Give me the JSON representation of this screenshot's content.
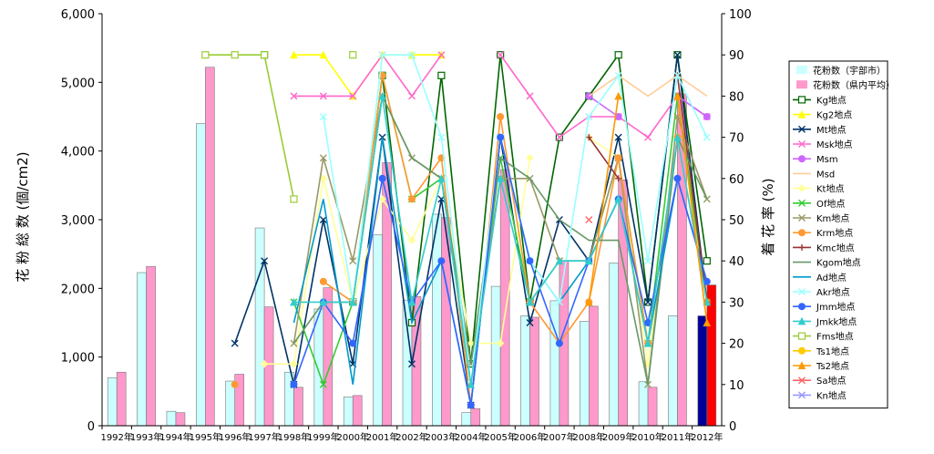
{
  "chart_data": {
    "type": "bar+line",
    "title": "",
    "ylabel_left": "花 粉 総 数 (個/cm2)",
    "ylabel_right": "着 花 率 (%)",
    "ylim_left": [
      0,
      6000
    ],
    "ylim_right": [
      0,
      100
    ],
    "yticks_left": [
      "0",
      "1,000",
      "2,000",
      "3,000",
      "4,000",
      "5,000",
      "6,000"
    ],
    "yticks_right": [
      "0",
      "10",
      "20",
      "30",
      "40",
      "50",
      "60",
      "70",
      "80",
      "90",
      "100"
    ],
    "categories": [
      "1992年",
      "1993年",
      "1994年",
      "1995年",
      "1996年",
      "1997年",
      "1998年",
      "1999年",
      "2000年",
      "2001年",
      "2002年",
      "2003年",
      "2004年",
      "2005年",
      "2006年",
      "2007年",
      "2008年",
      "2009年",
      "2010年",
      "2011年",
      "2012年"
    ],
    "legend_position": "right",
    "bar_series": [
      {
        "name": "花粉数（宇部市）",
        "color": "#ccffff",
        "values": [
          700,
          2230,
          210,
          4400,
          650,
          2880,
          780,
          1700,
          420,
          2780,
          1830,
          3080,
          190,
          2030,
          1600,
          1820,
          1520,
          2370,
          640,
          1600,
          1600
        ]
      },
      {
        "name": "花粉数（県内平均）",
        "color": "#ff99cc",
        "values": [
          780,
          2320,
          190,
          5220,
          750,
          1730,
          560,
          2010,
          440,
          3830,
          1880,
          3030,
          250,
          3730,
          1580,
          2400,
          1740,
          3580,
          560,
          4830,
          2050
        ]
      }
    ],
    "bar_2012_colors": [
      "#000099",
      "#ff0000"
    ],
    "line_series": [
      {
        "name": "Kg地点",
        "color": "#006600",
        "marker": "square",
        "values": [
          null,
          null,
          null,
          null,
          null,
          90,
          null,
          null,
          30,
          85,
          25,
          85,
          15,
          90,
          30,
          70,
          80,
          90,
          30,
          90,
          40
        ]
      },
      {
        "name": "Kg2地点",
        "color": "#ffff00",
        "marker": "triangle",
        "values": [
          null,
          null,
          null,
          null,
          null,
          null,
          90,
          90,
          80,
          90,
          90,
          90,
          null,
          null,
          null,
          null,
          null,
          null,
          null,
          null,
          null
        ]
      },
      {
        "name": "Mt地点",
        "color": "#003366",
        "marker": "x",
        "values": [
          null,
          null,
          null,
          null,
          20,
          40,
          10,
          50,
          15,
          70,
          15,
          55,
          5,
          70,
          25,
          50,
          40,
          70,
          30,
          90,
          30
        ]
      },
      {
        "name": "Msk地点",
        "color": "#ff66cc",
        "marker": "x",
        "values": [
          null,
          null,
          null,
          null,
          null,
          null,
          80,
          80,
          80,
          90,
          80,
          90,
          null,
          90,
          80,
          70,
          75,
          75,
          70,
          80,
          75
        ]
      },
      {
        "name": "Msm",
        "color": "#cc66ff",
        "marker": "circle",
        "values": [
          null,
          null,
          null,
          null,
          null,
          null,
          null,
          null,
          null,
          null,
          null,
          null,
          null,
          null,
          null,
          null,
          80,
          75,
          null,
          80,
          75
        ]
      },
      {
        "name": "Msd",
        "color": "#ffcc99",
        "marker": "none",
        "values": [
          null,
          null,
          null,
          null,
          null,
          null,
          null,
          null,
          null,
          null,
          null,
          null,
          null,
          null,
          null,
          null,
          80,
          85,
          80,
          85,
          80
        ]
      },
      {
        "name": "Kt地点",
        "color": "#ffff99",
        "marker": "diamond",
        "values": [
          null,
          null,
          null,
          null,
          null,
          15,
          15,
          60,
          30,
          55,
          45,
          60,
          20,
          20,
          65,
          null,
          70,
          65,
          15,
          70,
          30
        ]
      },
      {
        "name": "Of地点",
        "color": "#33cc33",
        "marker": "x",
        "values": [
          null,
          null,
          null,
          null,
          null,
          null,
          30,
          10,
          30,
          85,
          55,
          60,
          10,
          65,
          30,
          40,
          40,
          65,
          20,
          80,
          30
        ]
      },
      {
        "name": "Km地点",
        "color": "#999966",
        "marker": "x",
        "values": [
          null,
          null,
          null,
          null,
          null,
          null,
          20,
          65,
          40,
          80,
          65,
          60,
          15,
          60,
          60,
          40,
          40,
          65,
          10,
          75,
          55
        ]
      },
      {
        "name": "Krm地点",
        "color": "#ff9933",
        "marker": "circle",
        "values": [
          null,
          null,
          null,
          null,
          10,
          null,
          null,
          35,
          30,
          85,
          55,
          65,
          5,
          75,
          30,
          20,
          30,
          65,
          20,
          70,
          30
        ]
      },
      {
        "name": "Kmc地点",
        "color": "#993333",
        "marker": "plus",
        "values": [
          null,
          null,
          null,
          null,
          null,
          null,
          null,
          null,
          null,
          null,
          null,
          null,
          null,
          null,
          null,
          null,
          70,
          60,
          null,
          85,
          30
        ]
      },
      {
        "name": "Kgom地点",
        "color": "#669966",
        "marker": "none",
        "values": [
          null,
          null,
          null,
          null,
          null,
          null,
          20,
          30,
          30,
          80,
          65,
          60,
          15,
          65,
          60,
          50,
          45,
          45,
          10,
          70,
          55
        ]
      },
      {
        "name": "Ad地点",
        "color": "#0099cc",
        "marker": "none",
        "values": [
          null,
          null,
          null,
          null,
          null,
          null,
          25,
          55,
          10,
          70,
          25,
          40,
          5,
          70,
          40,
          30,
          40,
          55,
          20,
          60,
          35
        ]
      },
      {
        "name": "Akr地点",
        "color": "#99ffff",
        "marker": "x",
        "values": [
          null,
          null,
          null,
          null,
          null,
          null,
          null,
          75,
          30,
          90,
          90,
          70,
          10,
          70,
          40,
          30,
          75,
          85,
          40,
          85,
          70
        ]
      },
      {
        "name": "Jmm地点",
        "color": "#3366ff",
        "marker": "circle",
        "values": [
          null,
          null,
          null,
          null,
          null,
          null,
          10,
          30,
          20,
          60,
          30,
          40,
          5,
          70,
          40,
          20,
          40,
          55,
          25,
          60,
          35
        ]
      },
      {
        "name": "Jmkk地点",
        "color": "#33cccc",
        "marker": "triangle",
        "values": [
          null,
          null,
          null,
          null,
          null,
          null,
          30,
          30,
          30,
          80,
          30,
          60,
          10,
          60,
          30,
          40,
          40,
          55,
          20,
          70,
          30
        ]
      },
      {
        "name": "Fms地点",
        "color": "#99cc33",
        "marker": "square",
        "values": [
          null,
          null,
          null,
          90,
          90,
          90,
          55,
          null,
          90,
          null,
          null,
          null,
          null,
          null,
          null,
          null,
          null,
          null,
          null,
          null,
          null
        ]
      },
      {
        "name": "Ts1地点",
        "color": "#ffcc00",
        "marker": "circle",
        "values": [
          null,
          null,
          null,
          null,
          null,
          null,
          null,
          null,
          null,
          null,
          null,
          null,
          null,
          null,
          null,
          null,
          null,
          null,
          null,
          null,
          null
        ]
      },
      {
        "name": "Ts2地点",
        "color": "#ff9900",
        "marker": "triangle",
        "values": [
          null,
          null,
          null,
          null,
          null,
          null,
          null,
          null,
          null,
          null,
          null,
          null,
          null,
          null,
          null,
          null,
          30,
          80,
          null,
          80,
          25
        ]
      },
      {
        "name": "Sa地点",
        "color": "#ff6666",
        "marker": "x",
        "values": [
          null,
          null,
          null,
          null,
          null,
          null,
          null,
          null,
          null,
          null,
          null,
          null,
          null,
          null,
          null,
          null,
          50,
          null,
          null,
          null,
          null
        ]
      },
      {
        "name": "Kn地点",
        "color": "#9999ff",
        "marker": "x",
        "values": [
          null,
          null,
          null,
          null,
          null,
          null,
          null,
          null,
          null,
          null,
          null,
          null,
          null,
          null,
          null,
          null,
          null,
          null,
          null,
          null,
          null
        ]
      }
    ]
  }
}
